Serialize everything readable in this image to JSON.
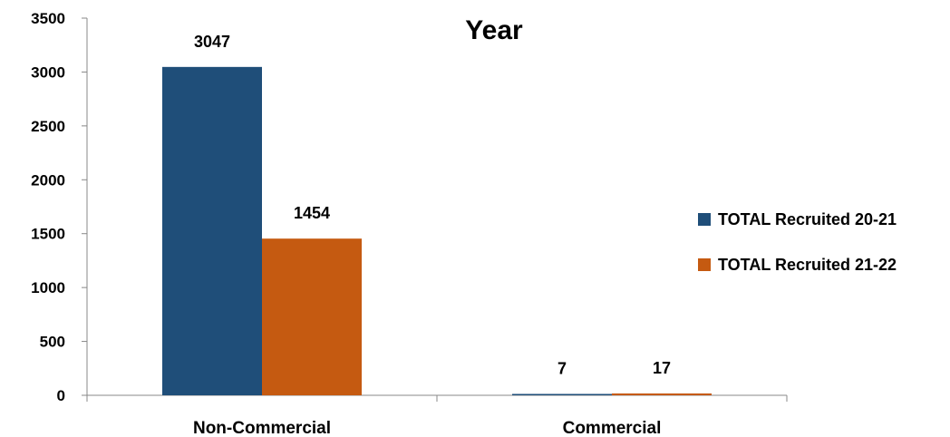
{
  "chart_data": {
    "type": "bar",
    "title": "Year",
    "xlabel": "",
    "ylabel": "",
    "categories": [
      "Non-Commercial",
      "Commercial"
    ],
    "series": [
      {
        "name": "TOTAL Recruited 20-21",
        "values": [
          3047,
          7
        ],
        "color": "#1F4E79"
      },
      {
        "name": "TOTAL Recruited 21-22",
        "values": [
          1454,
          17
        ],
        "color": "#C55A11"
      }
    ],
    "ylim": [
      0,
      3500
    ],
    "yticks": [
      0,
      500,
      1000,
      1500,
      2000,
      2500,
      3000,
      3500
    ],
    "grid": false,
    "legend_position": "right"
  }
}
